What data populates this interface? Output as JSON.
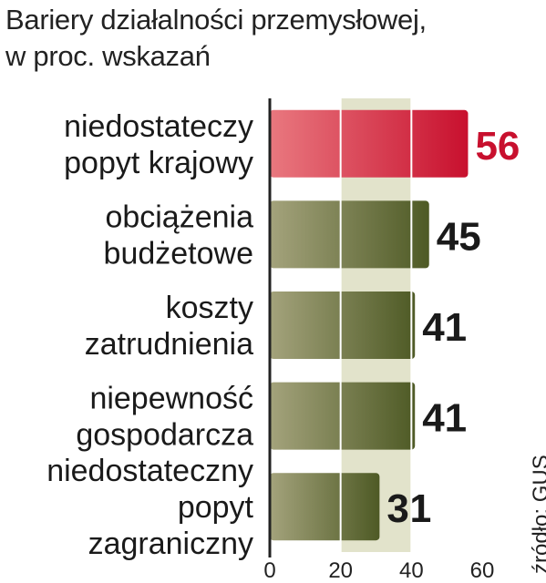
{
  "chart_data": {
    "type": "bar",
    "orientation": "horizontal",
    "title": "Bariery działalności przemysłowej,",
    "subtitle": "w proc. wskazań",
    "categories": [
      [
        "niedostateczy",
        "popyt krajowy"
      ],
      [
        "obciążenia",
        "budżetowe"
      ],
      [
        "koszty",
        "zatrudnienia"
      ],
      [
        "niepewność",
        "gospodarcza"
      ],
      [
        "niedostateczny",
        "popyt",
        "zagraniczny"
      ]
    ],
    "values": [
      56,
      45,
      41,
      41,
      31
    ],
    "value_labels": [
      "56",
      "45",
      "41",
      "41",
      "31"
    ],
    "highlight_index": 0,
    "xlim": [
      0,
      60
    ],
    "x_ticks": [
      "0",
      "20",
      "40",
      "60"
    ],
    "grid": true,
    "source": "źródło: GUS",
    "colors": {
      "highlight_dark": "#c8102e",
      "highlight_light": "#e9787f",
      "bar_dark": "#4e5a25",
      "bar_light": "#a4a37c",
      "highlight_label": "#c8102e",
      "label": "#1a1a1a",
      "band": "#e2e3cb",
      "axis": "#222222"
    }
  }
}
